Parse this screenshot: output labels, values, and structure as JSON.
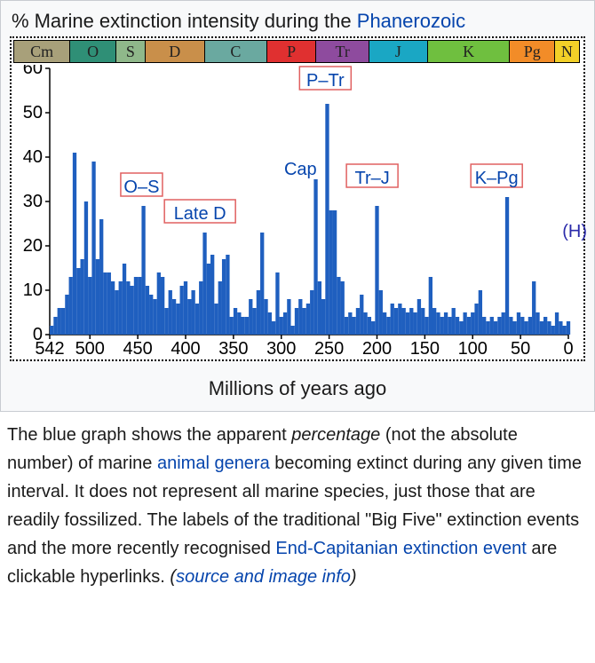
{
  "chart": {
    "type": "bar-histogram",
    "title_pre": "Marine extinction intensity during the ",
    "title_link": "Phanerozoic",
    "pct_label": "%",
    "xlabel": "Millions of years ago",
    "x_domain": [
      542,
      0
    ],
    "y_domain": [
      0,
      60
    ],
    "yticks": [
      0,
      10,
      20,
      30,
      40,
      50,
      60
    ],
    "xticks": [
      542,
      500,
      450,
      400,
      350,
      300,
      250,
      200,
      150,
      100,
      50,
      0
    ],
    "bar_color": "#1f5fbf",
    "background_color": "#ffffff",
    "border_style": "2px dotted #000",
    "tick_fontsize": 20,
    "title_fontsize": 22,
    "periods": [
      {
        "abbr": "Cm",
        "start": 542,
        "end": 488,
        "color": "#a8a07a"
      },
      {
        "abbr": "O",
        "start": 488,
        "end": 444,
        "color": "#2f8f76"
      },
      {
        "abbr": "S",
        "start": 444,
        "end": 416,
        "color": "#8fb88a"
      },
      {
        "abbr": "D",
        "start": 416,
        "end": 359,
        "color": "#c98f4a"
      },
      {
        "abbr": "C",
        "start": 359,
        "end": 299,
        "color": "#6aa9a0"
      },
      {
        "abbr": "P",
        "start": 299,
        "end": 252,
        "color": "#e03030"
      },
      {
        "abbr": "Tr",
        "start": 252,
        "end": 201,
        "color": "#8e4b9e"
      },
      {
        "abbr": "J",
        "start": 201,
        "end": 145,
        "color": "#1aa7c4"
      },
      {
        "abbr": "K",
        "start": 145,
        "end": 66,
        "color": "#6fbf3f"
      },
      {
        "abbr": "Pg",
        "start": 66,
        "end": 23,
        "color": "#f28c28"
      },
      {
        "abbr": "N",
        "start": 23,
        "end": 0,
        "color": "#f2d028"
      }
    ],
    "h_marker": "(H)",
    "data": [
      {
        "t": 542,
        "v": 2
      },
      {
        "t": 538,
        "v": 4
      },
      {
        "t": 534,
        "v": 6
      },
      {
        "t": 530,
        "v": 6
      },
      {
        "t": 526,
        "v": 9
      },
      {
        "t": 522,
        "v": 13
      },
      {
        "t": 518,
        "v": 41
      },
      {
        "t": 514,
        "v": 15
      },
      {
        "t": 510,
        "v": 17
      },
      {
        "t": 506,
        "v": 30
      },
      {
        "t": 502,
        "v": 13
      },
      {
        "t": 498,
        "v": 39
      },
      {
        "t": 494,
        "v": 17
      },
      {
        "t": 490,
        "v": 26
      },
      {
        "t": 486,
        "v": 14
      },
      {
        "t": 482,
        "v": 14
      },
      {
        "t": 478,
        "v": 12
      },
      {
        "t": 474,
        "v": 10
      },
      {
        "t": 470,
        "v": 12
      },
      {
        "t": 466,
        "v": 16
      },
      {
        "t": 462,
        "v": 12
      },
      {
        "t": 458,
        "v": 11
      },
      {
        "t": 454,
        "v": 13
      },
      {
        "t": 450,
        "v": 13
      },
      {
        "t": 446,
        "v": 29
      },
      {
        "t": 442,
        "v": 11
      },
      {
        "t": 438,
        "v": 9
      },
      {
        "t": 434,
        "v": 8
      },
      {
        "t": 430,
        "v": 14
      },
      {
        "t": 426,
        "v": 13
      },
      {
        "t": 422,
        "v": 6
      },
      {
        "t": 418,
        "v": 10
      },
      {
        "t": 414,
        "v": 8
      },
      {
        "t": 410,
        "v": 7
      },
      {
        "t": 406,
        "v": 11
      },
      {
        "t": 402,
        "v": 12
      },
      {
        "t": 398,
        "v": 8
      },
      {
        "t": 394,
        "v": 10
      },
      {
        "t": 390,
        "v": 7
      },
      {
        "t": 386,
        "v": 12
      },
      {
        "t": 382,
        "v": 23
      },
      {
        "t": 378,
        "v": 16
      },
      {
        "t": 374,
        "v": 18
      },
      {
        "t": 370,
        "v": 7
      },
      {
        "t": 366,
        "v": 12
      },
      {
        "t": 362,
        "v": 17
      },
      {
        "t": 358,
        "v": 18
      },
      {
        "t": 354,
        "v": 4
      },
      {
        "t": 350,
        "v": 6
      },
      {
        "t": 346,
        "v": 5
      },
      {
        "t": 342,
        "v": 4
      },
      {
        "t": 338,
        "v": 4
      },
      {
        "t": 334,
        "v": 8
      },
      {
        "t": 330,
        "v": 6
      },
      {
        "t": 326,
        "v": 10
      },
      {
        "t": 322,
        "v": 23
      },
      {
        "t": 318,
        "v": 8
      },
      {
        "t": 314,
        "v": 5
      },
      {
        "t": 310,
        "v": 3
      },
      {
        "t": 306,
        "v": 14
      },
      {
        "t": 302,
        "v": 4
      },
      {
        "t": 298,
        "v": 5
      },
      {
        "t": 294,
        "v": 8
      },
      {
        "t": 290,
        "v": 2
      },
      {
        "t": 286,
        "v": 6
      },
      {
        "t": 282,
        "v": 8
      },
      {
        "t": 278,
        "v": 6
      },
      {
        "t": 274,
        "v": 7
      },
      {
        "t": 270,
        "v": 10
      },
      {
        "t": 266,
        "v": 35
      },
      {
        "t": 262,
        "v": 12
      },
      {
        "t": 258,
        "v": 8
      },
      {
        "t": 254,
        "v": 52
      },
      {
        "t": 250,
        "v": 28
      },
      {
        "t": 246,
        "v": 28
      },
      {
        "t": 242,
        "v": 13
      },
      {
        "t": 238,
        "v": 12
      },
      {
        "t": 234,
        "v": 4
      },
      {
        "t": 230,
        "v": 5
      },
      {
        "t": 226,
        "v": 4
      },
      {
        "t": 222,
        "v": 6
      },
      {
        "t": 218,
        "v": 9
      },
      {
        "t": 214,
        "v": 5
      },
      {
        "t": 210,
        "v": 4
      },
      {
        "t": 206,
        "v": 3
      },
      {
        "t": 202,
        "v": 29
      },
      {
        "t": 198,
        "v": 10
      },
      {
        "t": 194,
        "v": 5
      },
      {
        "t": 190,
        "v": 4
      },
      {
        "t": 186,
        "v": 7
      },
      {
        "t": 182,
        "v": 6
      },
      {
        "t": 178,
        "v": 7
      },
      {
        "t": 174,
        "v": 6
      },
      {
        "t": 170,
        "v": 5
      },
      {
        "t": 166,
        "v": 6
      },
      {
        "t": 162,
        "v": 5
      },
      {
        "t": 158,
        "v": 8
      },
      {
        "t": 154,
        "v": 6
      },
      {
        "t": 150,
        "v": 4
      },
      {
        "t": 146,
        "v": 13
      },
      {
        "t": 142,
        "v": 6
      },
      {
        "t": 138,
        "v": 5
      },
      {
        "t": 134,
        "v": 4
      },
      {
        "t": 130,
        "v": 5
      },
      {
        "t": 126,
        "v": 4
      },
      {
        "t": 122,
        "v": 6
      },
      {
        "t": 118,
        "v": 4
      },
      {
        "t": 114,
        "v": 3
      },
      {
        "t": 110,
        "v": 5
      },
      {
        "t": 106,
        "v": 4
      },
      {
        "t": 102,
        "v": 5
      },
      {
        "t": 98,
        "v": 7
      },
      {
        "t": 94,
        "v": 10
      },
      {
        "t": 90,
        "v": 4
      },
      {
        "t": 86,
        "v": 3
      },
      {
        "t": 82,
        "v": 4
      },
      {
        "t": 78,
        "v": 3
      },
      {
        "t": 74,
        "v": 4
      },
      {
        "t": 70,
        "v": 5
      },
      {
        "t": 66,
        "v": 31
      },
      {
        "t": 62,
        "v": 4
      },
      {
        "t": 58,
        "v": 3
      },
      {
        "t": 54,
        "v": 5
      },
      {
        "t": 50,
        "v": 4
      },
      {
        "t": 46,
        "v": 3
      },
      {
        "t": 42,
        "v": 4
      },
      {
        "t": 38,
        "v": 12
      },
      {
        "t": 34,
        "v": 5
      },
      {
        "t": 30,
        "v": 3
      },
      {
        "t": 26,
        "v": 4
      },
      {
        "t": 22,
        "v": 3
      },
      {
        "t": 18,
        "v": 2
      },
      {
        "t": 14,
        "v": 5
      },
      {
        "t": 10,
        "v": 3
      },
      {
        "t": 6,
        "v": 2
      },
      {
        "t": 2,
        "v": 3
      }
    ],
    "events": [
      {
        "label": "O–S",
        "t": 446,
        "y_lab": 32,
        "boxed": true
      },
      {
        "label": "Late D",
        "t": 385,
        "y_lab": 26,
        "boxed": true
      },
      {
        "label": "Cap",
        "t": 280,
        "y_lab": 36,
        "boxed": false
      },
      {
        "label": "P–Tr",
        "t": 254,
        "y_lab": 56,
        "boxed": true
      },
      {
        "label": "Tr–J",
        "t": 205,
        "y_lab": 34,
        "boxed": true
      },
      {
        "label": "K–Pg",
        "t": 75,
        "y_lab": 34,
        "boxed": true
      }
    ],
    "event_label_color": "#0645ad",
    "event_box_stroke": "#e06060",
    "event_label_fontsize": 20
  },
  "caption": {
    "t1": "The blue graph shows the apparent ",
    "em1": "percentage",
    "t2": " (not the absolute number) of marine ",
    "link1": "animal genera",
    "t3": " becoming extinct during any given time interval. It does not represent all marine species, just those that are readily fossilized. The labels of the traditional \"Big Five\" extinction events and the more recently recognised ",
    "link2": "End-Capitanian extinction event",
    "t4": " are clickable hyperlinks. ",
    "em2a": "(",
    "link3": "source and image info",
    "em2b": ")"
  }
}
